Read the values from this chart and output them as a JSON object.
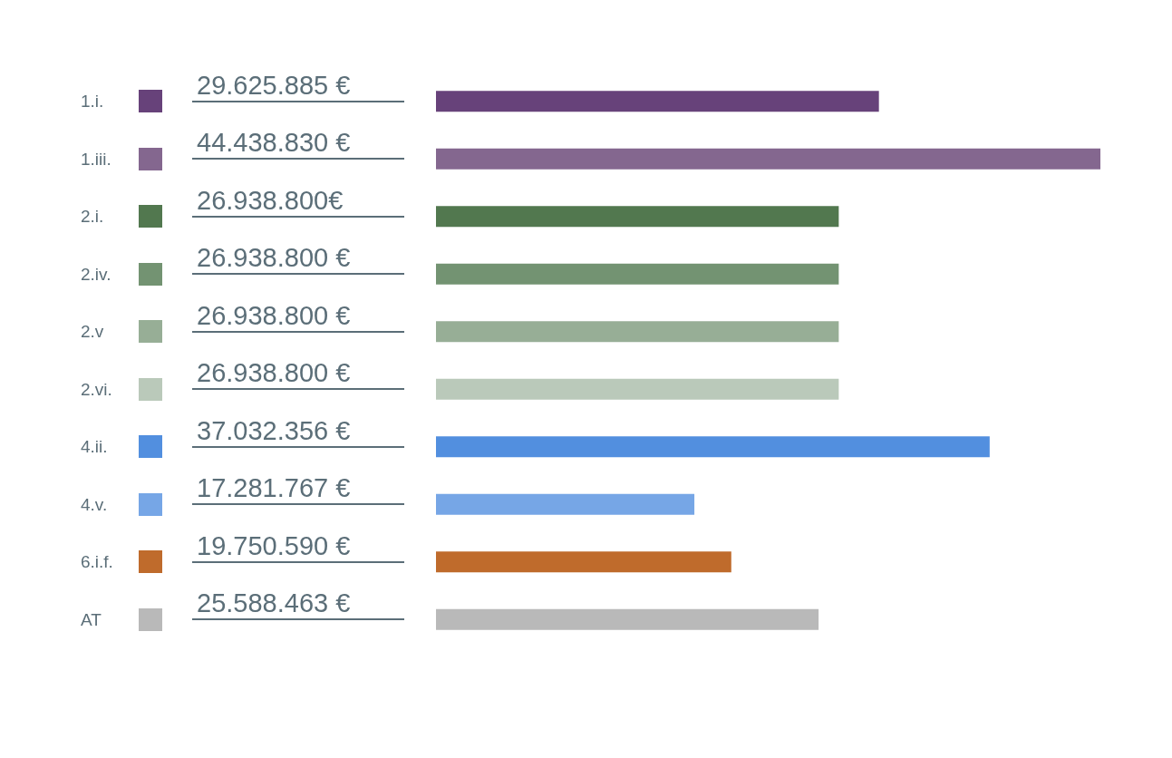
{
  "chart_data": {
    "type": "bar",
    "orientation": "horizontal",
    "categories": [
      "1.i.",
      "1.iii.",
      "2.i.",
      "2.iv.",
      "2.v",
      "2.vi.",
      "4.ii.",
      "4.v.",
      "6.i.f.",
      "AT"
    ],
    "values": [
      29625885,
      44438830,
      26938800,
      26938800,
      26938800,
      26938800,
      37032356,
      17281767,
      19750590,
      25588463
    ],
    "colors": [
      "#67427a",
      "#84678f",
      "#52784f",
      "#739372",
      "#97ae96",
      "#bac9ba",
      "#528fdf",
      "#76a6e6",
      "#bf6b2c",
      "#b9b9b9"
    ],
    "value_labels": [
      "29.625.885 €",
      "44.438.830 €",
      "26.938.800€",
      "26.938.800 €",
      "26.938.800 €",
      "26.938.800 €",
      "37.032.356 €",
      "17.281.767 €",
      "19.750.590 €",
      "25.588.463 €"
    ]
  }
}
